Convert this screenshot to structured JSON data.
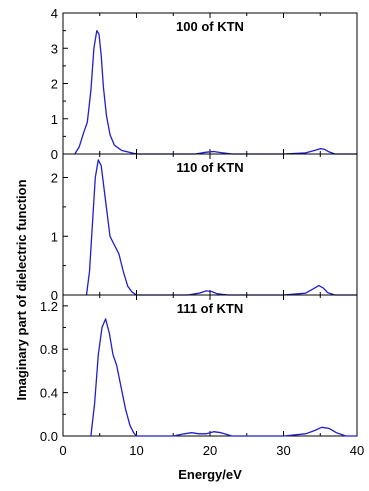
{
  "chart_data": {
    "type": "line",
    "ylabel": "Imaginary part of dielectric function",
    "xlabel": "Energy/eV",
    "xlim": [
      0,
      40
    ],
    "x_ticks": [
      "0",
      "10",
      "20",
      "30",
      "40"
    ],
    "line_color": "#1f1fcc",
    "panels": [
      {
        "title": "100 of KTN",
        "ylim": [
          0,
          4
        ],
        "y_ticks": [
          "0",
          "1",
          "2",
          "3",
          "4"
        ],
        "series": [
          {
            "x": [
              1.6,
              2.2,
              2.8,
              3.3,
              3.8,
              4.2,
              4.6,
              4.9,
              5.2,
              5.5,
              5.9,
              6.4,
              7.0,
              8.0,
              9.0,
              10.0,
              12.0,
              15.0,
              18.0,
              19.5,
              20.5,
              21.5,
              23.0,
              26.0,
              30.0,
              33.0,
              34.2,
              35.0,
              35.5,
              36.2,
              37.0,
              38.0,
              40.0
            ],
            "y": [
              0.0,
              0.2,
              0.6,
              0.9,
              1.8,
              3.0,
              3.5,
              3.4,
              2.8,
              1.9,
              1.1,
              0.55,
              0.25,
              0.1,
              0.05,
              0.0,
              0.0,
              0.0,
              0.0,
              0.05,
              0.07,
              0.04,
              0.0,
              0.0,
              0.0,
              0.03,
              0.1,
              0.15,
              0.14,
              0.06,
              0.0,
              0.0,
              0.0
            ]
          }
        ]
      },
      {
        "title": "110 of KTN",
        "ylim": [
          0,
          2.4
        ],
        "y_ticks": [
          "0",
          "1",
          "2"
        ],
        "series": [
          {
            "x": [
              3.2,
              3.6,
              4.0,
              4.4,
              4.8,
              5.2,
              5.8,
              6.4,
              7.0,
              7.6,
              8.2,
              8.8,
              9.4,
              10.0,
              12.0,
              17.0,
              18.5,
              19.5,
              20.2,
              21.0,
              22.5,
              26.0,
              30.0,
              33.0,
              34.0,
              34.8,
              35.4,
              36.0,
              37.0,
              40.0
            ],
            "y": [
              0.0,
              0.4,
              1.2,
              2.0,
              2.3,
              2.2,
              1.6,
              1.0,
              0.85,
              0.7,
              0.4,
              0.15,
              0.05,
              0.0,
              0.0,
              0.0,
              0.03,
              0.07,
              0.06,
              0.02,
              0.0,
              0.0,
              0.0,
              0.03,
              0.1,
              0.16,
              0.12,
              0.04,
              0.0,
              0.0
            ]
          }
        ]
      },
      {
        "title": "111 of KTN",
        "ylim": [
          0,
          1.3
        ],
        "y_ticks": [
          "0.0",
          "0.4",
          "0.8",
          "1.2"
        ],
        "series": [
          {
            "x": [
              3.8,
              4.3,
              4.8,
              5.3,
              5.8,
              6.3,
              6.8,
              7.3,
              7.9,
              8.5,
              9.1,
              9.6,
              10.0,
              12.0,
              15.0,
              16.5,
              17.5,
              18.5,
              19.5,
              20.5,
              21.5,
              23.0,
              26.0,
              30.0,
              33.0,
              34.2,
              35.2,
              36.2,
              37.2,
              38.5,
              40.0
            ],
            "y": [
              0.0,
              0.3,
              0.75,
              1.0,
              1.08,
              0.95,
              0.75,
              0.65,
              0.45,
              0.25,
              0.1,
              0.03,
              0.0,
              0.0,
              0.0,
              0.02,
              0.03,
              0.02,
              0.02,
              0.04,
              0.03,
              0.0,
              0.0,
              0.0,
              0.02,
              0.05,
              0.08,
              0.07,
              0.03,
              0.0,
              0.0
            ]
          }
        ]
      }
    ]
  }
}
